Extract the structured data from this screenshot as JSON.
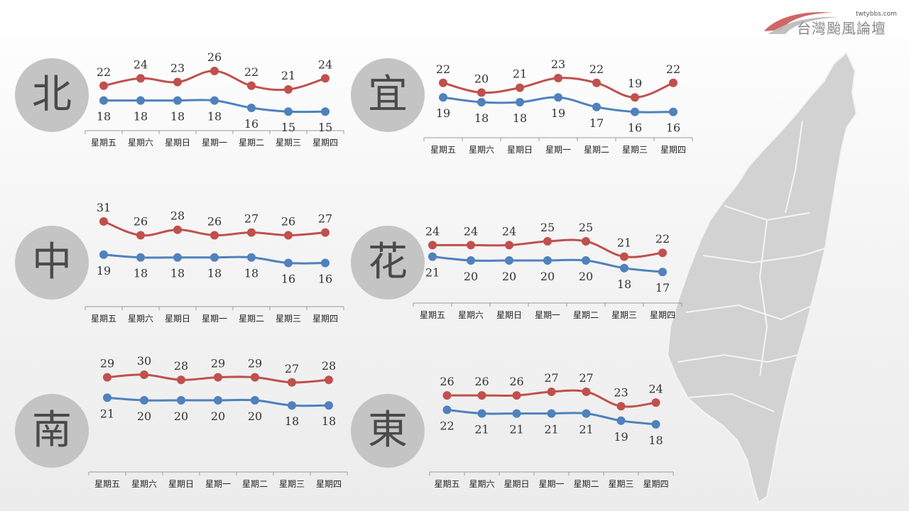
{
  "site": {
    "url": "twtybbs.com",
    "name": "台灣颱風論壇"
  },
  "colors": {
    "high": "#c0504d",
    "low": "#4f81bd",
    "circle": "#c4c4c4",
    "map": "#d2d2d2"
  },
  "chart_data": [
    {
      "region": "北",
      "type": "line",
      "categories": [
        "星期五",
        "星期六",
        "星期日",
        "星期一",
        "星期二",
        "星期三",
        "星期四"
      ],
      "series": [
        {
          "values": [
            22,
            24,
            23,
            26,
            22,
            21,
            24
          ]
        },
        {
          "values": [
            18,
            18,
            18,
            18,
            16,
            15,
            15
          ]
        }
      ]
    },
    {
      "region": "宜",
      "type": "line",
      "categories": [
        "星期五",
        "星期六",
        "星期日",
        "星期一",
        "星期二",
        "星期三",
        "星期四"
      ],
      "series": [
        {
          "values": [
            22,
            20,
            21,
            23,
            22,
            19,
            22
          ]
        },
        {
          "values": [
            19,
            18,
            18,
            19,
            17,
            16,
            16
          ]
        }
      ]
    },
    {
      "region": "中",
      "type": "line",
      "categories": [
        "星期五",
        "星期六",
        "星期日",
        "星期一",
        "星期二",
        "星期三",
        "星期四"
      ],
      "series": [
        {
          "values": [
            31,
            26,
            28,
            26,
            27,
            26,
            27
          ]
        },
        {
          "values": [
            19,
            18,
            18,
            18,
            18,
            16,
            16
          ]
        }
      ]
    },
    {
      "region": "花",
      "type": "line",
      "categories": [
        "星期五",
        "星期六",
        "星期日",
        "星期一",
        "星期二",
        "星期三",
        "星期四"
      ],
      "series": [
        {
          "values": [
            24,
            24,
            24,
            25,
            25,
            21,
            22
          ]
        },
        {
          "values": [
            21,
            20,
            20,
            20,
            20,
            18,
            17
          ]
        }
      ]
    },
    {
      "region": "南",
      "type": "line",
      "categories": [
        "星期五",
        "星期六",
        "星期日",
        "星期一",
        "星期二",
        "星期三",
        "星期四"
      ],
      "series": [
        {
          "values": [
            29,
            30,
            28,
            29,
            29,
            27,
            28
          ]
        },
        {
          "values": [
            21,
            20,
            20,
            20,
            20,
            18,
            18
          ]
        }
      ]
    },
    {
      "region": "東",
      "type": "line",
      "categories": [
        "星期五",
        "星期六",
        "星期日",
        "星期一",
        "星期二",
        "星期三",
        "星期四"
      ],
      "series": [
        {
          "values": [
            26,
            26,
            26,
            27,
            27,
            23,
            24
          ]
        },
        {
          "values": [
            22,
            21,
            21,
            21,
            21,
            19,
            18
          ]
        }
      ]
    }
  ]
}
